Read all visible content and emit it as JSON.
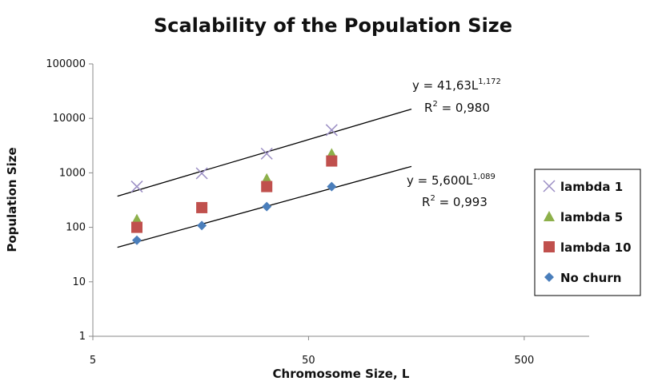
{
  "chart_data": {
    "type": "scatter",
    "title": "Scalability of the Population Size",
    "xlabel": "Chromosome Size, L",
    "ylabel": "Population Size",
    "x_scale": "log",
    "y_scale": "log",
    "xlim": [
      5,
      1000
    ],
    "ylim": [
      1,
      100000
    ],
    "x_ticks": [
      "5",
      "50",
      "500"
    ],
    "y_ticks": [
      "1",
      "10",
      "100",
      "1000",
      "10000",
      "100000"
    ],
    "grid": false,
    "legend_position": "right",
    "series": [
      {
        "name": "lambda 1",
        "marker": "x",
        "color": "#9b8ec4",
        "x": [
          8,
          16,
          32,
          64
        ],
        "y": [
          560,
          980,
          2250,
          6100
        ]
      },
      {
        "name": "lambda 5",
        "marker": "triangle",
        "color": "#8db04a",
        "x": [
          8,
          16,
          32,
          64
        ],
        "y": [
          140,
          230,
          780,
          2250
        ]
      },
      {
        "name": "lambda 10",
        "marker": "square",
        "color": "#c0504d",
        "x": [
          8,
          16,
          32,
          64
        ],
        "y": [
          100,
          230,
          560,
          1650
        ]
      },
      {
        "name": "No churn",
        "marker": "diamond",
        "color": "#4a7ebb",
        "x": [
          8,
          16,
          32,
          64
        ],
        "y": [
          58,
          108,
          240,
          560
        ]
      }
    ],
    "trendlines": [
      {
        "coef": 41.63,
        "exp": 1.172,
        "x_range": [
          6.5,
          150
        ],
        "equation_base": "y = 41,63L",
        "equation_exp": "1,172",
        "r2_base": "R",
        "r2_sup": "2",
        "r2_value": " = 0,980"
      },
      {
        "coef": 5.6,
        "exp": 1.089,
        "x_range": [
          6.5,
          150
        ],
        "equation_base": "y = 5,600L",
        "equation_exp": "1,089",
        "r2_base": "R",
        "r2_sup": "2",
        "r2_value": " = 0,993"
      }
    ]
  }
}
